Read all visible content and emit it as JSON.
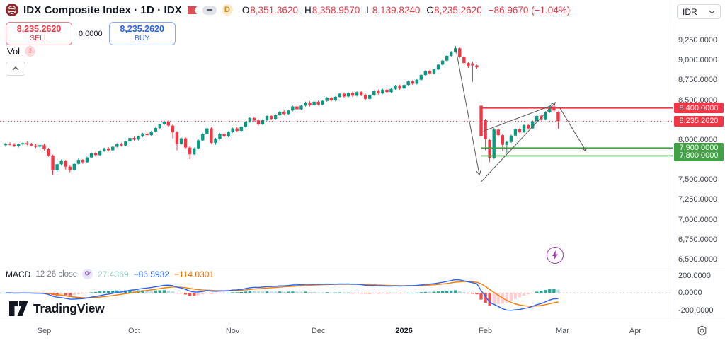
{
  "header": {
    "symbol_title": "IDX Composite Index · 1D · IDX",
    "interval_badge": "D",
    "ohlc": {
      "o_label": "O",
      "o": "8,351.3620",
      "h_label": "H",
      "h": "8,358.9570",
      "l_label": "L",
      "l": "8,139.8240",
      "c_label": "C",
      "c": "8,235.2620",
      "change": "−86.9670 (−1.04%)"
    },
    "sell": {
      "price": "8,235.2620",
      "label": "SELL"
    },
    "spread": "0.0000",
    "buy": {
      "price": "8,235.2620",
      "label": "BUY"
    },
    "vol_label": "Vol",
    "vol_error": "!",
    "currency": "IDR"
  },
  "macd_legend": {
    "title": "MACD",
    "params": "12 26 close",
    "hist_value": "27.4369",
    "macd_value": "−86.5932",
    "signal_value": "−114.0301"
  },
  "watermark": "TradingView",
  "price_axis": {
    "ticks": [
      {
        "text": "9,250.0000",
        "value": 9250
      },
      {
        "text": "9,000.0000",
        "value": 9000
      },
      {
        "text": "8,750.0000",
        "value": 8750
      },
      {
        "text": "8,500.0000",
        "value": 8500
      },
      {
        "text": "8,000.0000",
        "value": 8000
      },
      {
        "text": "7,500.0000",
        "value": 7500
      },
      {
        "text": "7,250.0000",
        "value": 7250
      },
      {
        "text": "7,000.0000",
        "value": 7000
      },
      {
        "text": "6,750.0000",
        "value": 6750
      },
      {
        "text": "6,500.0000",
        "value": 6500
      }
    ],
    "macd_ticks": [
      {
        "text": "200.0000",
        "value": 200
      },
      {
        "text": "0.0000",
        "value": 0
      },
      {
        "text": "-200.0000",
        "value": -200
      }
    ],
    "badges": [
      {
        "text": "8,400.0000",
        "value": 8400,
        "bg": "#f23645"
      },
      {
        "text": "8,235.2620",
        "value": 8235.262,
        "bg": "#f23645"
      },
      {
        "text": "7,900.0000",
        "value": 7900,
        "bg": "#43a047"
      },
      {
        "text": "7,800.0000",
        "value": 7800,
        "bg": "#43a047"
      }
    ]
  },
  "time_axis": {
    "labels": [
      {
        "text": "Sep",
        "i": 9,
        "bold": false
      },
      {
        "text": "Oct",
        "i": 30,
        "bold": false
      },
      {
        "text": "Nov",
        "i": 53,
        "bold": false
      },
      {
        "text": "Dec",
        "i": 73,
        "bold": false
      },
      {
        "text": "2026",
        "i": 93,
        "bold": true
      },
      {
        "text": "Feb",
        "i": 112,
        "bold": false
      },
      {
        "text": "Mar",
        "i": 130,
        "bold": false
      },
      {
        "text": "Apr",
        "i": 147,
        "bold": false
      }
    ]
  },
  "chart_data": {
    "type": "candlestick",
    "title": "IDX Composite Index",
    "interval": "1D",
    "exchange": "IDX",
    "price_range_shown": [
      6500,
      9250
    ],
    "macd_range_shown": [
      -200,
      200
    ],
    "current_price": {
      "value": 8235.262,
      "color": "#f23645"
    },
    "levels": [
      {
        "value": 8400,
        "color": "#f23645"
      },
      {
        "value": 7900,
        "color": "#43a047"
      },
      {
        "value": 7800,
        "color": "#43a047"
      }
    ],
    "levels_start_i": 111,
    "colors": {
      "up": "#089981",
      "down": "#f23645",
      "macd_line": "#2962ff",
      "signal_line": "#f57c00",
      "hist_grow_above": "#26a69a",
      "hist_fall_above": "#b2dfdb",
      "hist_grow_below": "#ffcdd2",
      "hist_fall_below": "#ef5350",
      "arrow": "#5a5a5a"
    },
    "annotations": [
      {
        "from_i": 105,
        "from_p": 9170,
        "to_i": 110.6,
        "to_p": 7560,
        "head": true
      },
      {
        "from_i": 110.9,
        "from_p": 7470,
        "to_i": 128.3,
        "to_p": 8470,
        "head": true
      },
      {
        "from_i": 111.5,
        "from_p": 8110,
        "to_i": 127.3,
        "to_p": 8430,
        "head": false
      },
      {
        "from_i": 129.4,
        "from_p": 8400,
        "to_i": 135.5,
        "to_p": 7860,
        "head": true
      }
    ],
    "candles": [
      [
        7935,
        7965,
        7915,
        7950
      ],
      [
        7950,
        7970,
        7930,
        7940
      ],
      [
        7940,
        7960,
        7910,
        7925
      ],
      [
        7925,
        7955,
        7905,
        7945
      ],
      [
        7945,
        7975,
        7930,
        7960
      ],
      [
        7960,
        7980,
        7935,
        7945
      ],
      [
        7945,
        7965,
        7920,
        7930
      ],
      [
        7930,
        7950,
        7900,
        7915
      ],
      [
        7915,
        7945,
        7895,
        7935
      ],
      [
        7935,
        7950,
        7870,
        7885
      ],
      [
        7885,
        7900,
        7790,
        7805
      ],
      [
        7805,
        7815,
        7560,
        7620
      ],
      [
        7620,
        7710,
        7600,
        7695
      ],
      [
        7695,
        7755,
        7680,
        7740
      ],
      [
        7740,
        7750,
        7630,
        7665
      ],
      [
        7665,
        7680,
        7595,
        7625
      ],
      [
        7625,
        7715,
        7615,
        7700
      ],
      [
        7700,
        7765,
        7690,
        7750
      ],
      [
        7750,
        7760,
        7700,
        7720
      ],
      [
        7720,
        7790,
        7710,
        7780
      ],
      [
        7780,
        7845,
        7770,
        7835
      ],
      [
        7835,
        7850,
        7790,
        7810
      ],
      [
        7810,
        7870,
        7800,
        7860
      ],
      [
        7860,
        7905,
        7850,
        7895
      ],
      [
        7895,
        7910,
        7855,
        7870
      ],
      [
        7870,
        7925,
        7860,
        7915
      ],
      [
        7915,
        7960,
        7905,
        7950
      ],
      [
        7950,
        7965,
        7915,
        7930
      ],
      [
        7930,
        7990,
        7920,
        7980
      ],
      [
        7980,
        8035,
        7970,
        8025
      ],
      [
        8025,
        8040,
        7990,
        8005
      ],
      [
        8005,
        8055,
        7995,
        8045
      ],
      [
        8045,
        8090,
        8035,
        8080
      ],
      [
        8080,
        8095,
        8045,
        8060
      ],
      [
        8060,
        8115,
        8050,
        8105
      ],
      [
        8105,
        8160,
        8095,
        8150
      ],
      [
        8150,
        8205,
        8140,
        8195
      ],
      [
        8195,
        8240,
        8185,
        8230
      ],
      [
        8230,
        8245,
        8165,
        8180
      ],
      [
        8180,
        8195,
        8020,
        8095
      ],
      [
        8095,
        8110,
        7870,
        7950
      ],
      [
        7950,
        8030,
        7940,
        8020
      ],
      [
        8020,
        8035,
        7890,
        7905
      ],
      [
        7905,
        7920,
        7760,
        7820
      ],
      [
        7820,
        7905,
        7810,
        7895
      ],
      [
        7895,
        8005,
        7885,
        7995
      ],
      [
        7995,
        8085,
        7985,
        8075
      ],
      [
        8075,
        8155,
        8065,
        8145
      ],
      [
        8145,
        8160,
        7950,
        7965
      ],
      [
        7965,
        8025,
        7940,
        8015
      ],
      [
        8015,
        8085,
        8005,
        8075
      ],
      [
        8075,
        8090,
        8030,
        8045
      ],
      [
        8045,
        8110,
        8035,
        8100
      ],
      [
        8100,
        8155,
        8090,
        8145
      ],
      [
        8145,
        8160,
        8100,
        8115
      ],
      [
        8115,
        8175,
        8105,
        8165
      ],
      [
        8165,
        8235,
        8155,
        8225
      ],
      [
        8225,
        8285,
        8215,
        8275
      ],
      [
        8275,
        8290,
        8230,
        8245
      ],
      [
        8245,
        8260,
        8180,
        8195
      ],
      [
        8195,
        8260,
        8185,
        8250
      ],
      [
        8250,
        8310,
        8240,
        8300
      ],
      [
        8300,
        8315,
        8250,
        8265
      ],
      [
        8265,
        8320,
        8255,
        8310
      ],
      [
        8310,
        8365,
        8300,
        8355
      ],
      [
        8355,
        8370,
        8310,
        8325
      ],
      [
        8325,
        8380,
        8315,
        8370
      ],
      [
        8370,
        8430,
        8360,
        8420
      ],
      [
        8420,
        8435,
        8370,
        8385
      ],
      [
        8385,
        8440,
        8375,
        8430
      ],
      [
        8430,
        8480,
        8420,
        8470
      ],
      [
        8470,
        8485,
        8420,
        8435
      ],
      [
        8435,
        8490,
        8425,
        8480
      ],
      [
        8480,
        8495,
        8430,
        8445
      ],
      [
        8445,
        8500,
        8435,
        8490
      ],
      [
        8490,
        8540,
        8480,
        8530
      ],
      [
        8530,
        8545,
        8480,
        8495
      ],
      [
        8495,
        8550,
        8485,
        8540
      ],
      [
        8540,
        8590,
        8530,
        8580
      ],
      [
        8580,
        8595,
        8530,
        8545
      ],
      [
        8545,
        8600,
        8535,
        8590
      ],
      [
        8590,
        8605,
        8540,
        8555
      ],
      [
        8555,
        8610,
        8545,
        8600
      ],
      [
        8600,
        8615,
        8550,
        8565
      ],
      [
        8565,
        8580,
        8500,
        8515
      ],
      [
        8515,
        8575,
        8505,
        8565
      ],
      [
        8565,
        8625,
        8555,
        8615
      ],
      [
        8615,
        8630,
        8570,
        8585
      ],
      [
        8585,
        8640,
        8575,
        8630
      ],
      [
        8630,
        8645,
        8585,
        8600
      ],
      [
        8600,
        8650,
        8590,
        8640
      ],
      [
        8640,
        8690,
        8630,
        8680
      ],
      [
        8680,
        8695,
        8630,
        8645
      ],
      [
        8645,
        8700,
        8635,
        8690
      ],
      [
        8690,
        8745,
        8680,
        8735
      ],
      [
        8735,
        8750,
        8690,
        8705
      ],
      [
        8705,
        8765,
        8695,
        8755
      ],
      [
        8755,
        8825,
        8745,
        8815
      ],
      [
        8815,
        8875,
        8805,
        8865
      ],
      [
        8865,
        8880,
        8820,
        8835
      ],
      [
        8835,
        8895,
        8825,
        8885
      ],
      [
        8885,
        8955,
        8875,
        8945
      ],
      [
        8945,
        9005,
        8935,
        8995
      ],
      [
        8995,
        9065,
        8985,
        9055
      ],
      [
        9055,
        9115,
        9045,
        9105
      ],
      [
        9105,
        9180,
        9095,
        9150
      ],
      [
        9150,
        9160,
        9030,
        9045
      ],
      [
        9045,
        9060,
        8950,
        8965
      ],
      [
        8965,
        8975,
        8905,
        8920
      ],
      [
        8960,
        8985,
        8730,
        8935
      ],
      [
        8935,
        8945,
        8895,
        8910
      ],
      [
        8430,
        8480,
        7620,
        8050
      ],
      [
        8250,
        8265,
        7870,
        8010
      ],
      [
        8000,
        8015,
        7720,
        7775
      ],
      [
        7775,
        8150,
        7760,
        8130
      ],
      [
        8130,
        8145,
        8040,
        8060
      ],
      [
        8060,
        8075,
        7860,
        7940
      ],
      [
        7940,
        7990,
        7830,
        7975
      ],
      [
        7975,
        8065,
        7965,
        8055
      ],
      [
        8055,
        8145,
        8045,
        8135
      ],
      [
        8135,
        8150,
        8085,
        8100
      ],
      [
        8100,
        8195,
        8090,
        8185
      ],
      [
        8185,
        8200,
        8130,
        8145
      ],
      [
        8145,
        8245,
        8135,
        8235
      ],
      [
        8235,
        8310,
        8225,
        8300
      ],
      [
        8300,
        8315,
        8245,
        8260
      ],
      [
        8260,
        8360,
        8250,
        8350
      ],
      [
        8350,
        8430,
        8340,
        8420
      ],
      [
        8420,
        8465,
        8350,
        8370
      ],
      [
        8351.36,
        8358.96,
        8139.82,
        8235.26
      ]
    ],
    "macd_params": {
      "fast": 12,
      "slow": 26,
      "signal": 9,
      "source": "close"
    }
  }
}
